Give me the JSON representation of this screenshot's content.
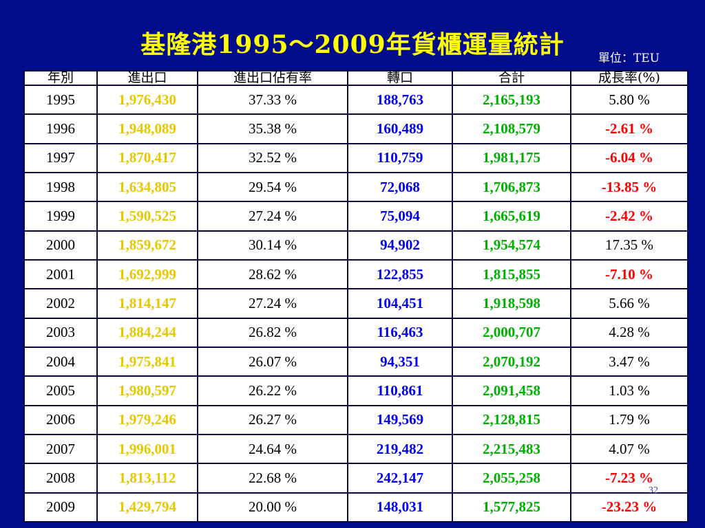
{
  "title": "基隆港1995～2009年貨櫃運量統計",
  "unit": "單位：TEU",
  "page_number": "32",
  "colors": {
    "background": "#000c8a",
    "title": "#ffff00",
    "import_export": "#e6c800",
    "transshipment": "#0000ee",
    "total": "#00b000",
    "negative_growth": "#ff0000"
  },
  "table": {
    "headers": [
      "年別",
      "進出口",
      "進出口佔有率",
      "轉口",
      "合計",
      "成長率(%)"
    ],
    "rows": [
      {
        "year": "1995",
        "import_export": "1,976,430",
        "share": "37.33 %",
        "transshipment": "188,763",
        "total": "2,165,193",
        "growth": "5.80 %",
        "negative": false
      },
      {
        "year": "1996",
        "import_export": "1,948,089",
        "share": "35.38 %",
        "transshipment": "160,489",
        "total": "2,108,579",
        "growth": "-2.61 %",
        "negative": true
      },
      {
        "year": "1997",
        "import_export": "1,870,417",
        "share": "32.52 %",
        "transshipment": "110,759",
        "total": "1,981,175",
        "growth": "-6.04 %",
        "negative": true
      },
      {
        "year": "1998",
        "import_export": "1,634,805",
        "share": "29.54 %",
        "transshipment": "72,068",
        "total": "1,706,873",
        "growth": "-13.85 %",
        "negative": true
      },
      {
        "year": "1999",
        "import_export": "1,590,525",
        "share": "27.24 %",
        "transshipment": "75,094",
        "total": "1,665,619",
        "growth": "-2.42 %",
        "negative": true
      },
      {
        "year": "2000",
        "import_export": "1,859,672",
        "share": "30.14 %",
        "transshipment": "94,902",
        "total": "1,954,574",
        "growth": "17.35 %",
        "negative": false
      },
      {
        "year": "2001",
        "import_export": "1,692,999",
        "share": "28.62 %",
        "transshipment": "122,855",
        "total": "1,815,855",
        "growth": "-7.10 %",
        "negative": true
      },
      {
        "year": "2002",
        "import_export": "1,814,147",
        "share": "27.24 %",
        "transshipment": "104,451",
        "total": "1,918,598",
        "growth": "5.66 %",
        "negative": false
      },
      {
        "year": "2003",
        "import_export": "1,884,244",
        "share": "26.82 %",
        "transshipment": "116,463",
        "total": "2,000,707",
        "growth": "4.28 %",
        "negative": false
      },
      {
        "year": "2004",
        "import_export": "1,975,841",
        "share": "26.07 %",
        "transshipment": "94,351",
        "total": "2,070,192",
        "growth": "3.47 %",
        "negative": false
      },
      {
        "year": "2005",
        "import_export": "1,980,597",
        "share": "26.22 %",
        "transshipment": "110,861",
        "total": "2,091,458",
        "growth": "1.03 %",
        "negative": false
      },
      {
        "year": "2006",
        "import_export": "1,979,246",
        "share": "26.27 %",
        "transshipment": "149,569",
        "total": "2,128,815",
        "growth": "1.79 %",
        "negative": false
      },
      {
        "year": "2007",
        "import_export": "1,996,001",
        "share": "24.64 %",
        "transshipment": "219,482",
        "total": "2,215,483",
        "growth": "4.07 %",
        "negative": false
      },
      {
        "year": "2008",
        "import_export": "1,813,112",
        "share": "22.68 %",
        "transshipment": "242,147",
        "total": "2,055,258",
        "growth": "-7.23 %",
        "negative": true
      },
      {
        "year": "2009",
        "import_export": "1,429,794",
        "share": "20.00 %",
        "transshipment": "148,031",
        "total": "1,577,825",
        "growth": "-23.23 %",
        "negative": true
      }
    ]
  }
}
